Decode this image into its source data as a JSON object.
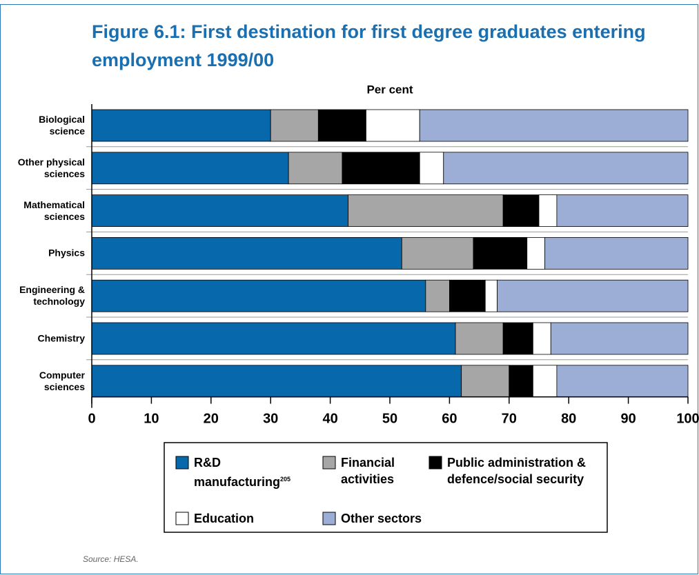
{
  "chart_data": {
    "type": "stacked_barh",
    "title": "Figure 6.1: First destination for first degree graduates entering employment 1999/00",
    "xlabel": "Per cent",
    "categories": [
      "Biological science",
      "Other physical sciences",
      "Mathematical sciences",
      "Physics",
      "Engineering & technology",
      "Chemistry",
      "Computer sciences"
    ],
    "series": [
      {
        "name": "R&D manufacturing",
        "color": "#0868ac",
        "values": [
          30,
          33,
          43,
          52,
          56,
          61,
          62
        ]
      },
      {
        "name": "Financial activities",
        "color": "#a6a6a6",
        "values": [
          8,
          9,
          26,
          12,
          4,
          8,
          8
        ]
      },
      {
        "name": "Public administration & defence/social security",
        "color": "#000000",
        "values": [
          8,
          13,
          6,
          9,
          6,
          5,
          4
        ]
      },
      {
        "name": "Education",
        "color": "#ffffff",
        "values": [
          9,
          4,
          3,
          3,
          2,
          3,
          4
        ]
      },
      {
        "name": "Other sectors",
        "color": "#9caed6",
        "values": [
          45,
          41,
          22,
          24,
          32,
          23,
          22
        ]
      }
    ],
    "footnote_ref": "205",
    "xlim": [
      0,
      100
    ],
    "xticks": [
      0,
      10,
      20,
      30,
      40,
      50,
      60,
      70,
      80,
      90,
      100
    ],
    "source": "Source: HESA."
  }
}
